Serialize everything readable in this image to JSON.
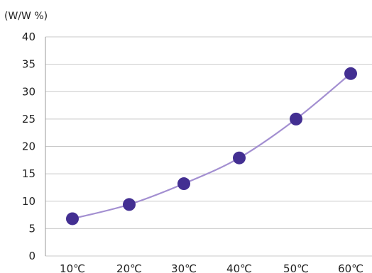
{
  "chart_data": {
    "type": "line",
    "categories": [
      "10℃",
      "20℃",
      "30℃",
      "40℃",
      "50℃",
      "60℃"
    ],
    "series": [
      {
        "values": [
          6.8,
          9.4,
          13.2,
          17.9,
          25.0,
          33.3
        ]
      }
    ],
    "ylabel": "(W/W %)",
    "ylim": [
      0,
      40
    ],
    "yticks": [
      0,
      5,
      10,
      15,
      20,
      25,
      30,
      35,
      40
    ],
    "grid": true,
    "colors": {
      "line": "#a38fd1",
      "marker": "#432f92",
      "grid": "#c9c9c9",
      "axis": "#9a9a9a"
    }
  }
}
